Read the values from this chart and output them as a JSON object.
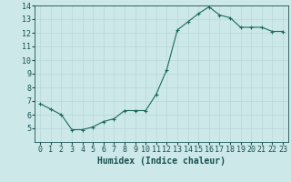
{
  "x": [
    0,
    1,
    2,
    3,
    4,
    5,
    6,
    7,
    8,
    9,
    10,
    11,
    12,
    13,
    14,
    15,
    16,
    17,
    18,
    19,
    20,
    21,
    22,
    23
  ],
  "y": [
    6.8,
    6.4,
    6.0,
    4.9,
    4.9,
    5.1,
    5.5,
    5.7,
    6.3,
    6.3,
    6.3,
    7.5,
    9.3,
    12.2,
    12.8,
    13.4,
    13.9,
    13.3,
    13.1,
    12.4,
    12.4,
    12.4,
    12.1,
    12.1
  ],
  "line_color": "#1a6b5a",
  "marker": "+",
  "xlabel": "Humidex (Indice chaleur)",
  "bg_color": "#cce8e8",
  "grid_color": "#b8d8d8",
  "xmin": -0.5,
  "xmax": 23.5,
  "ymin": 4,
  "ymax": 14,
  "yticks": [
    5,
    6,
    7,
    8,
    9,
    10,
    11,
    12,
    13,
    14
  ],
  "xticks": [
    0,
    1,
    2,
    3,
    4,
    5,
    6,
    7,
    8,
    9,
    10,
    11,
    12,
    13,
    14,
    15,
    16,
    17,
    18,
    19,
    20,
    21,
    22,
    23
  ],
  "tick_color": "#1a5050",
  "label_fontsize": 7,
  "tick_fontsize": 6
}
